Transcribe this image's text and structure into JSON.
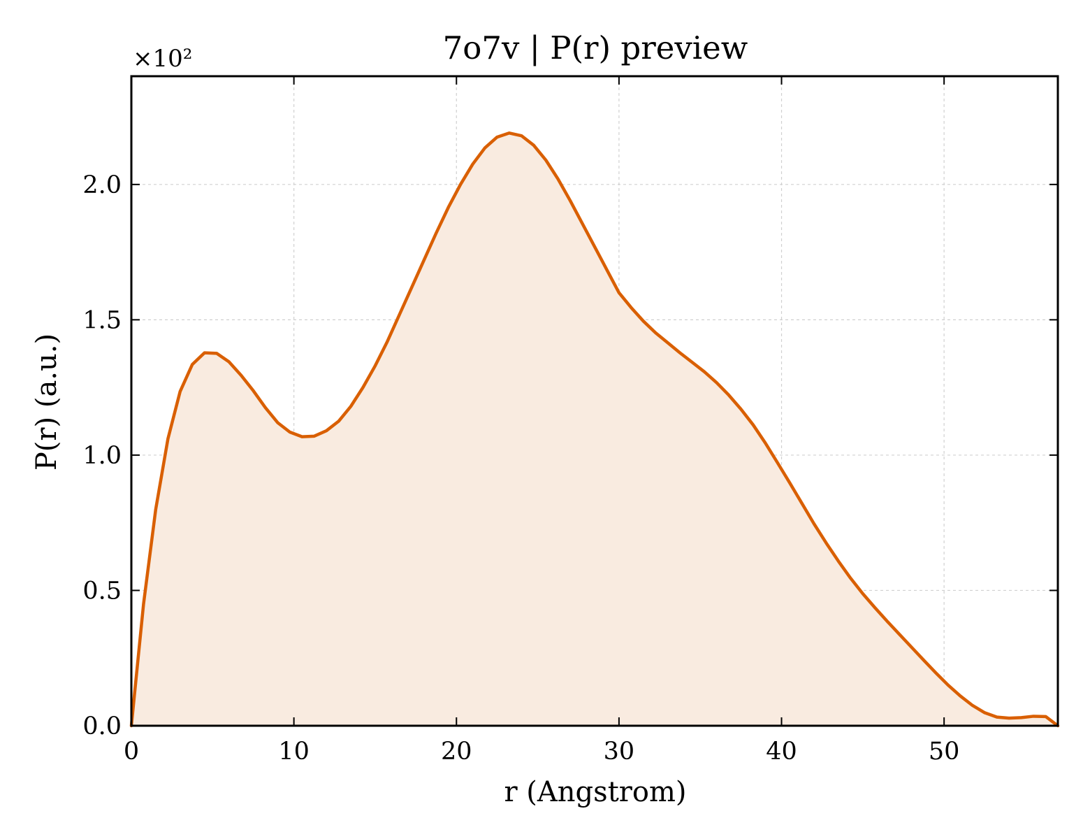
{
  "chart_data": {
    "type": "area",
    "title": "7o7v | P(r) preview",
    "xlabel": "r (Angstrom)",
    "ylabel": "P(r) (a.u.)",
    "y_multiplier": "×10²",
    "xlim": [
      0,
      57
    ],
    "ylim": [
      0,
      2.4
    ],
    "xticks": [
      0,
      10,
      20,
      30,
      40,
      50
    ],
    "xtick_labels": [
      "0",
      "10",
      "20",
      "30",
      "40",
      "50"
    ],
    "yticks": [
      0,
      0.5,
      1.0,
      1.5,
      2.0
    ],
    "ytick_labels": [
      "0.0",
      "0.5",
      "1.0",
      "1.5",
      "2.0"
    ],
    "grid": true,
    "colors": {
      "line": "#d95f02",
      "fill": "#f9ebe0"
    },
    "series": [
      {
        "x": [
          0,
          0.75,
          1.5,
          2.25,
          3.0,
          3.75,
          4.5,
          5.25,
          6.0,
          6.75,
          7.5,
          8.25,
          9.0,
          9.75,
          10.5,
          11.25,
          12.0,
          12.75,
          13.5,
          14.25,
          15.0,
          15.75,
          16.5,
          17.25,
          18.0,
          18.75,
          19.5,
          20.25,
          21.0,
          21.75,
          22.5,
          23.25,
          24.0,
          24.75,
          25.5,
          26.25,
          27.0,
          27.75,
          28.5,
          29.25,
          30.0,
          30.75,
          31.5,
          32.25,
          33.0,
          33.75,
          34.5,
          35.25,
          36.0,
          36.75,
          37.5,
          38.25,
          39.0,
          39.75,
          40.5,
          41.25,
          42.0,
          42.75,
          43.5,
          44.25,
          45.0,
          45.75,
          46.5,
          47.25,
          48.0,
          48.75,
          49.5,
          50.25,
          51.0,
          51.75,
          52.5,
          53.25,
          54.0,
          54.75,
          55.5,
          56.25,
          57.0
        ],
        "y": [
          0.0,
          0.45,
          0.8,
          1.06,
          1.235,
          1.335,
          1.378,
          1.376,
          1.345,
          1.295,
          1.238,
          1.175,
          1.12,
          1.085,
          1.068,
          1.07,
          1.09,
          1.125,
          1.18,
          1.25,
          1.33,
          1.42,
          1.52,
          1.62,
          1.72,
          1.82,
          1.915,
          2.0,
          2.075,
          2.135,
          2.175,
          2.19,
          2.18,
          2.145,
          2.09,
          2.02,
          1.94,
          1.855,
          1.77,
          1.685,
          1.6,
          1.545,
          1.495,
          1.452,
          1.415,
          1.378,
          1.343,
          1.308,
          1.268,
          1.222,
          1.17,
          1.112,
          1.045,
          0.972,
          0.898,
          0.822,
          0.746,
          0.675,
          0.608,
          0.545,
          0.488,
          0.436,
          0.386,
          0.338,
          0.29,
          0.242,
          0.195,
          0.15,
          0.11,
          0.075,
          0.048,
          0.032,
          0.028,
          0.03,
          0.035,
          0.034,
          0.0
        ]
      }
    ]
  }
}
